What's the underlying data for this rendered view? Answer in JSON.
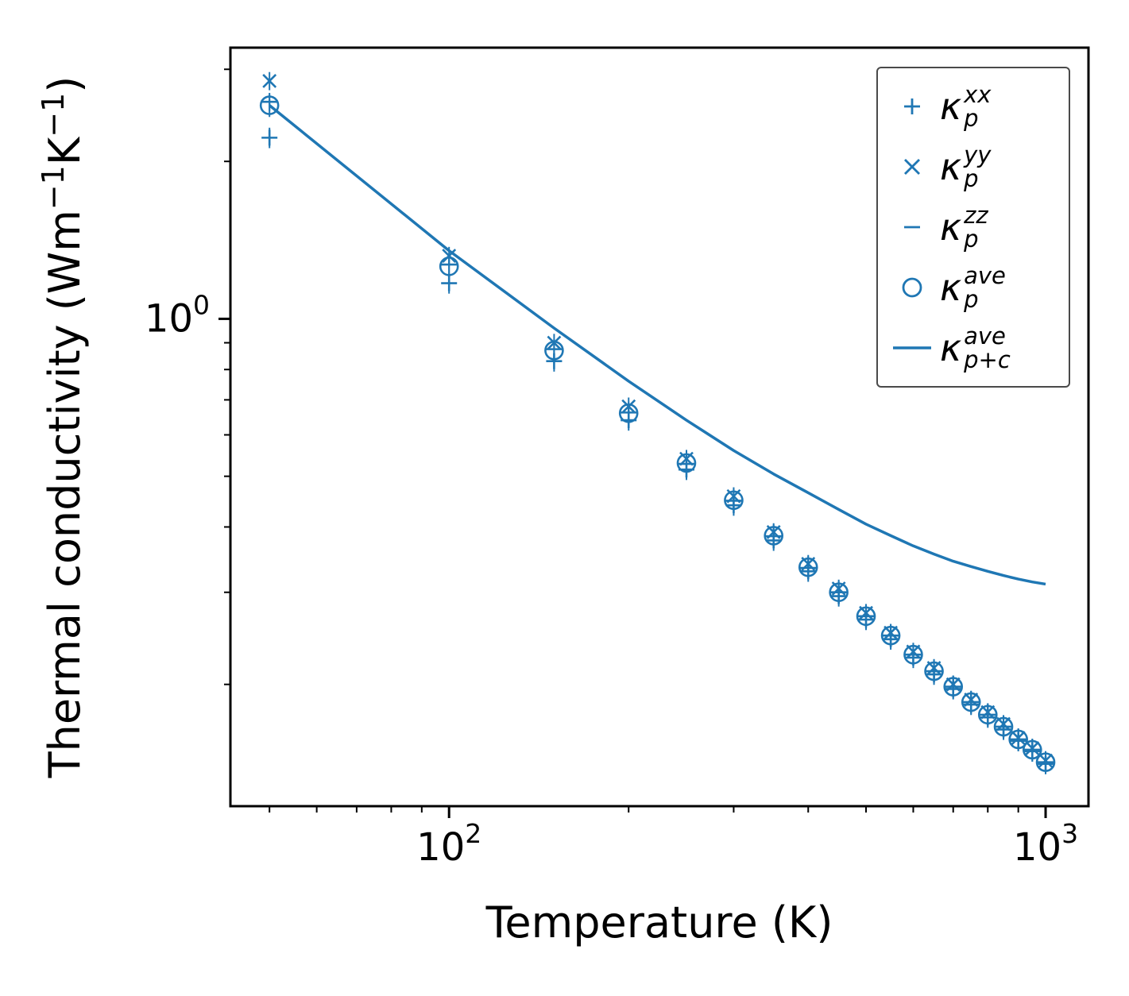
{
  "chart_data": {
    "type": "line",
    "title": "",
    "xlabel": "Temperature (K)",
    "ylabel": "Thermal conductivity (Wm⁻¹K⁻¹)",
    "ylabel_parts": [
      {
        "t": "Thermal conductivity (Wm",
        "sup": false
      },
      {
        "t": "−1",
        "sup": true
      },
      {
        "t": "K",
        "sup": false
      },
      {
        "t": "−1",
        "sup": true
      },
      {
        "t": ")",
        "sup": false
      }
    ],
    "x_scale": "log",
    "y_scale": "log",
    "xlim": [
      43,
      1180
    ],
    "ylim": [
      0.117,
      3.3
    ],
    "x_major_ticks": [
      {
        "value": 100,
        "base": "10",
        "exp": "2"
      },
      {
        "value": 1000,
        "base": "10",
        "exp": "3"
      }
    ],
    "x_minor_ticks": [
      50,
      60,
      70,
      80,
      90,
      200,
      300,
      400,
      500,
      600,
      700,
      800,
      900
    ],
    "y_major_ticks": [
      {
        "value": 1,
        "base": "10",
        "exp": "0"
      }
    ],
    "y_minor_ticks": [
      0.2,
      0.3,
      0.4,
      0.5,
      0.6,
      0.7,
      0.8,
      0.9,
      2,
      3
    ],
    "color": "#1f77b4",
    "grid": false,
    "legend_position": "upper right",
    "temperatures": [
      50,
      100,
      150,
      200,
      250,
      300,
      350,
      400,
      450,
      500,
      550,
      600,
      650,
      700,
      750,
      800,
      850,
      900,
      950,
      1000
    ],
    "series": [
      {
        "name": "kappa_p_xx",
        "marker": "plus",
        "rel_error": 0.045,
        "values": [
          2.22,
          1.17,
          0.83,
          0.64,
          0.515,
          0.44,
          0.377,
          0.329,
          0.295,
          0.266,
          0.244,
          0.225,
          0.209,
          0.196,
          0.183,
          0.173,
          0.164,
          0.156,
          0.149,
          0.141
        ]
      },
      {
        "name": "kappa_p_yy",
        "marker": "x",
        "rel_error": 0.04,
        "values": [
          2.85,
          1.32,
          0.9,
          0.68,
          0.54,
          0.458,
          0.391,
          0.34,
          0.305,
          0.274,
          0.251,
          0.231,
          0.215,
          0.2,
          0.187,
          0.177,
          0.168,
          0.158,
          0.151,
          0.143
        ]
      },
      {
        "name": "kappa_p_zz",
        "marker": "hline",
        "rel_error": 0.04,
        "values": [
          2.6,
          1.27,
          0.875,
          0.662,
          0.528,
          0.449,
          0.384,
          0.334,
          0.3,
          0.27,
          0.248,
          0.228,
          0.212,
          0.198,
          0.185,
          0.175,
          0.166,
          0.157,
          0.15,
          0.142
        ]
      },
      {
        "name": "kappa_p_ave",
        "marker": "circle",
        "rel_error": 0.05,
        "values": [
          2.56,
          1.26,
          0.87,
          0.66,
          0.53,
          0.45,
          0.385,
          0.335,
          0.3,
          0.27,
          0.248,
          0.228,
          0.212,
          0.198,
          0.185,
          0.175,
          0.166,
          0.157,
          0.15,
          0.142
        ]
      },
      {
        "name": "kappa_p_plus_c_ave",
        "marker": "line",
        "values": [
          2.56,
          1.35,
          0.96,
          0.76,
          0.64,
          0.56,
          0.505,
          0.465,
          0.432,
          0.405,
          0.385,
          0.368,
          0.355,
          0.344,
          0.336,
          0.329,
          0.323,
          0.318,
          0.314,
          0.311
        ]
      }
    ],
    "legend": {
      "items": [
        {
          "marker": "plus",
          "kappa": "κ",
          "sub": "p",
          "sup": "xx"
        },
        {
          "marker": "x",
          "kappa": "κ",
          "sub": "p",
          "sup": "yy"
        },
        {
          "marker": "hline",
          "kappa": "κ",
          "sub": "p",
          "sup": "zz"
        },
        {
          "marker": "circle",
          "kappa": "κ",
          "sub": "p",
          "sup": "ave"
        },
        {
          "marker": "line",
          "kappa": "κ",
          "sub": "p+c",
          "sup": "ave"
        }
      ]
    }
  }
}
